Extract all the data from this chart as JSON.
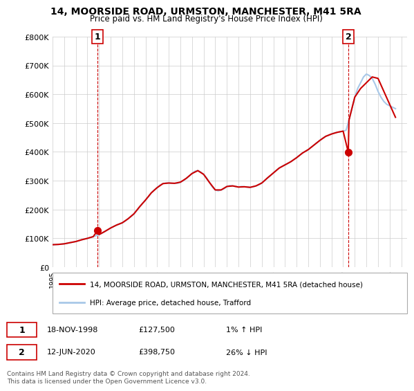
{
  "title": "14, MOORSIDE ROAD, URMSTON, MANCHESTER, M41 5RA",
  "subtitle": "Price paid vs. HM Land Registry's House Price Index (HPI)",
  "ylim": [
    0,
    800000
  ],
  "yticks": [
    0,
    100000,
    200000,
    300000,
    400000,
    500000,
    600000,
    700000,
    800000
  ],
  "ytick_labels": [
    "£0",
    "£100K",
    "£200K",
    "£300K",
    "£400K",
    "£500K",
    "£600K",
    "£700K",
    "£800K"
  ],
  "hpi_color": "#a8c8e8",
  "price_color": "#cc0000",
  "legend_label_price": "14, MOORSIDE ROAD, URMSTON, MANCHESTER, M41 5RA (detached house)",
  "legend_label_hpi": "HPI: Average price, detached house, Trafford",
  "annotation1_label": "1",
  "annotation1_date": "18-NOV-1998",
  "annotation1_price": "£127,500",
  "annotation1_hpi": "1% ↑ HPI",
  "annotation1_year": 1998.88,
  "annotation1_value": 127500,
  "annotation2_label": "2",
  "annotation2_date": "12-JUN-2020",
  "annotation2_price": "£398,750",
  "annotation2_hpi": "26% ↓ HPI",
  "annotation2_year": 2020.44,
  "annotation2_value": 398750,
  "footer": "Contains HM Land Registry data © Crown copyright and database right 2024.\nThis data is licensed under the Open Government Licence v3.0.",
  "hpi_data_years": [
    1995.0,
    1995.25,
    1995.5,
    1995.75,
    1996.0,
    1996.25,
    1996.5,
    1996.75,
    1997.0,
    1997.25,
    1997.5,
    1997.75,
    1998.0,
    1998.25,
    1998.5,
    1998.75,
    1999.0,
    1999.25,
    1999.5,
    1999.75,
    2000.0,
    2000.25,
    2000.5,
    2000.75,
    2001.0,
    2001.25,
    2001.5,
    2001.75,
    2002.0,
    2002.25,
    2002.5,
    2002.75,
    2003.0,
    2003.25,
    2003.5,
    2003.75,
    2004.0,
    2004.25,
    2004.5,
    2004.75,
    2005.0,
    2005.25,
    2005.5,
    2005.75,
    2006.0,
    2006.25,
    2006.5,
    2006.75,
    2007.0,
    2007.25,
    2007.5,
    2007.75,
    2008.0,
    2008.25,
    2008.5,
    2008.75,
    2009.0,
    2009.25,
    2009.5,
    2009.75,
    2010.0,
    2010.25,
    2010.5,
    2010.75,
    2011.0,
    2011.25,
    2011.5,
    2011.75,
    2012.0,
    2012.25,
    2012.5,
    2012.75,
    2013.0,
    2013.25,
    2013.5,
    2013.75,
    2014.0,
    2014.25,
    2014.5,
    2014.75,
    2015.0,
    2015.25,
    2015.5,
    2015.75,
    2016.0,
    2016.25,
    2016.5,
    2016.75,
    2017.0,
    2017.25,
    2017.5,
    2017.75,
    2018.0,
    2018.25,
    2018.5,
    2018.75,
    2019.0,
    2019.25,
    2019.5,
    2019.75,
    2020.0,
    2020.25,
    2020.5,
    2020.75,
    2021.0,
    2021.25,
    2021.5,
    2021.75,
    2022.0,
    2022.25,
    2022.5,
    2022.75,
    2023.0,
    2023.25,
    2023.5,
    2023.75,
    2024.0,
    2024.25,
    2024.5
  ],
  "hpi_data_values": [
    78000,
    78500,
    79000,
    80000,
    81000,
    83000,
    85000,
    87000,
    89000,
    92000,
    95000,
    98000,
    100000,
    103000,
    106000,
    109000,
    113000,
    118000,
    124000,
    130000,
    136000,
    141000,
    146000,
    150000,
    154000,
    160000,
    168000,
    176000,
    185000,
    197000,
    210000,
    222000,
    233000,
    245000,
    258000,
    268000,
    276000,
    285000,
    290000,
    292000,
    292000,
    291000,
    291000,
    291000,
    295000,
    300000,
    308000,
    316000,
    325000,
    333000,
    335000,
    330000,
    322000,
    310000,
    294000,
    278000,
    268000,
    265000,
    268000,
    272000,
    280000,
    283000,
    282000,
    280000,
    278000,
    280000,
    279000,
    278000,
    277000,
    279000,
    282000,
    286000,
    292000,
    300000,
    310000,
    318000,
    327000,
    336000,
    344000,
    350000,
    355000,
    360000,
    366000,
    373000,
    380000,
    388000,
    396000,
    402000,
    408000,
    416000,
    424000,
    432000,
    440000,
    448000,
    454000,
    458000,
    462000,
    466000,
    468000,
    470000,
    472000,
    475000,
    510000,
    550000,
    590000,
    620000,
    640000,
    660000,
    670000,
    665000,
    655000,
    635000,
    610000,
    590000,
    575000,
    565000,
    560000,
    555000,
    550000
  ],
  "price_line_years": [
    1995.0,
    1995.5,
    1996.0,
    1996.5,
    1997.0,
    1997.5,
    1998.0,
    1998.5,
    1998.88,
    1999.0,
    1999.5,
    2000.0,
    2000.5,
    2001.0,
    2001.5,
    2002.0,
    2002.5,
    2003.0,
    2003.5,
    2004.0,
    2004.5,
    2005.0,
    2005.5,
    2006.0,
    2006.5,
    2007.0,
    2007.5,
    2008.0,
    2008.5,
    2009.0,
    2009.5,
    2010.0,
    2010.5,
    2011.0,
    2011.5,
    2012.0,
    2012.5,
    2013.0,
    2013.5,
    2014.0,
    2014.5,
    2015.0,
    2015.5,
    2016.0,
    2016.5,
    2017.0,
    2017.5,
    2018.0,
    2018.5,
    2019.0,
    2019.5,
    2020.0,
    2020.44,
    2020.5,
    2021.0,
    2021.5,
    2022.0,
    2022.5,
    2023.0,
    2023.5,
    2024.0,
    2024.5
  ],
  "price_line_values": [
    78000,
    79000,
    81000,
    85000,
    89000,
    95000,
    100000,
    106000,
    127500,
    113000,
    124000,
    136000,
    146000,
    154000,
    168000,
    185000,
    210000,
    233000,
    258000,
    276000,
    290000,
    292000,
    291000,
    295000,
    308000,
    325000,
    335000,
    322000,
    294000,
    268000,
    268000,
    280000,
    282000,
    278000,
    279000,
    277000,
    282000,
    292000,
    310000,
    327000,
    344000,
    355000,
    366000,
    380000,
    396000,
    408000,
    424000,
    440000,
    454000,
    462000,
    468000,
    472000,
    398750,
    510000,
    590000,
    620000,
    640000,
    660000,
    655000,
    610000,
    565000,
    520000
  ]
}
